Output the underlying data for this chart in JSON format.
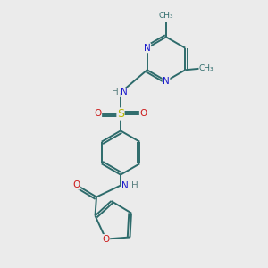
{
  "bg_color": "#ebebeb",
  "bond_color": "#2d6b6b",
  "bond_lw": 1.4,
  "atom_colors": {
    "N": "#1a1acc",
    "O": "#cc1a1a",
    "S": "#b8b800",
    "H": "#5a8080",
    "C": "#2d6b6b"
  },
  "afs": 7.5,
  "mfs": 6.5,
  "xlim": [
    0,
    10
  ],
  "ylim": [
    0,
    10
  ]
}
